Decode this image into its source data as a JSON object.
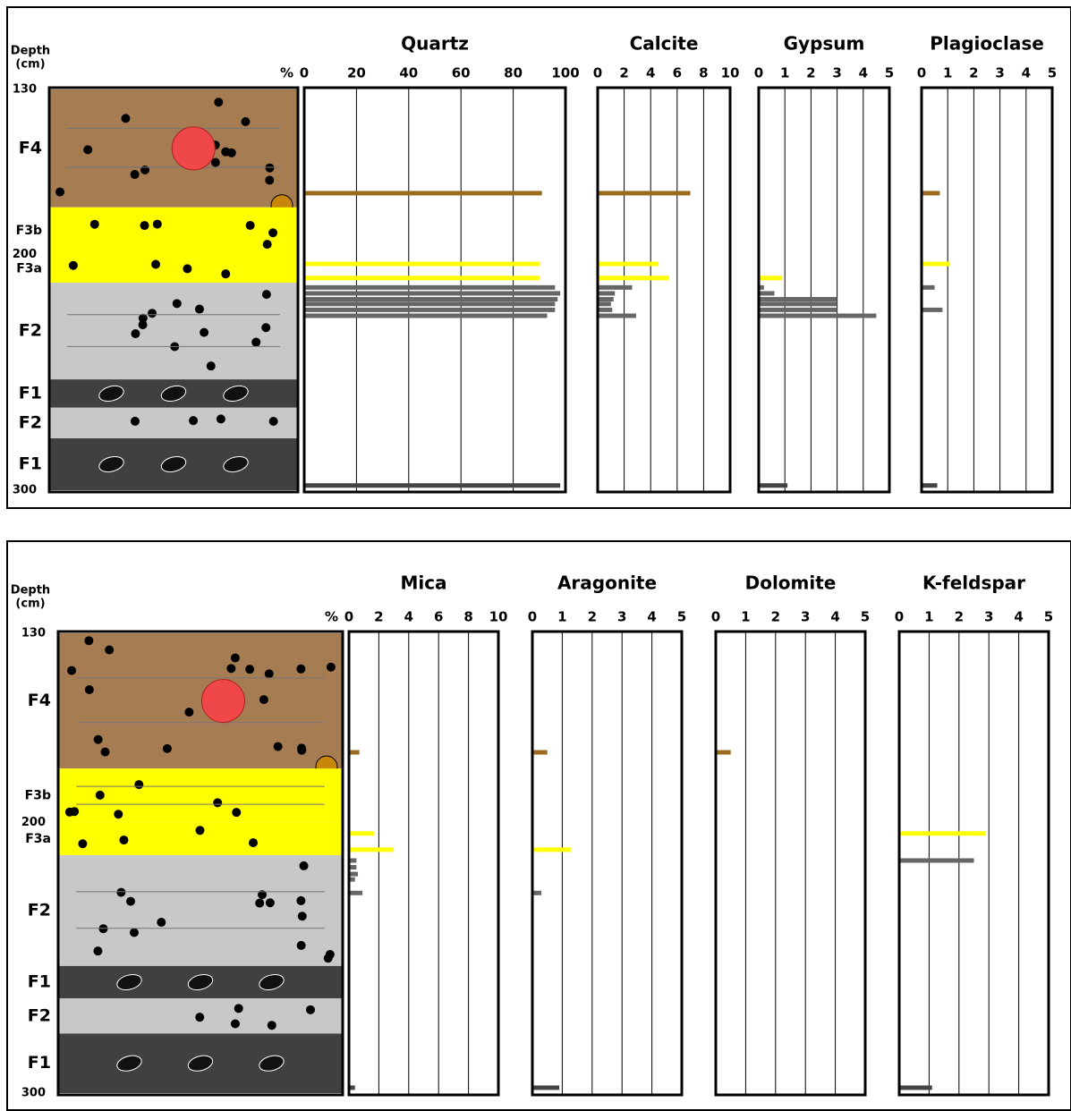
{
  "chart_data": [
    {
      "type": "bar",
      "orientation": "horizontal",
      "y_label": [
        "Depth",
        "(cm)"
      ],
      "x_unit": "%",
      "ylim": [
        130,
        300
      ],
      "yticks": [
        130,
        200,
        300
      ],
      "depths": [
        174,
        204,
        210,
        214,
        216.5,
        219,
        221,
        223.5,
        226,
        298
      ],
      "colors": [
        "#9b6a1f",
        "#ffff00",
        "#ffff00",
        "#666666",
        "#666666",
        "#666666",
        "#666666",
        "#666666",
        "#666666",
        "#444444"
      ],
      "layers": [
        {
          "label": "F4",
          "top": 130,
          "bottom": 180,
          "color": "#a67c52"
        },
        {
          "label": "F3b",
          "top": 180,
          "bottom": 200,
          "color": "#ffff00"
        },
        {
          "label": "F3a",
          "top": 200,
          "bottom": 212,
          "color": "#ffff00"
        },
        {
          "label": "F2",
          "top": 212,
          "bottom": 253,
          "color": "#c8c8c8"
        },
        {
          "label": "F1",
          "top": 253,
          "bottom": 265,
          "color": "#404040"
        },
        {
          "label": "F2",
          "top": 265,
          "bottom": 278,
          "color": "#c8c8c8"
        },
        {
          "label": "F1",
          "top": 278,
          "bottom": 300,
          "color": "#404040"
        }
      ],
      "subplots": [
        {
          "title": "Quartz",
          "xlim": [
            0,
            100
          ],
          "xticks": [
            0,
            20,
            40,
            60,
            80,
            100
          ],
          "values": [
            91,
            90,
            90,
            96,
            98,
            97,
            96,
            96,
            93,
            98
          ]
        },
        {
          "title": "Calcite",
          "xlim": [
            0,
            10
          ],
          "xticks": [
            0,
            2,
            4,
            6,
            8,
            10
          ],
          "values": [
            7.0,
            4.6,
            5.4,
            2.6,
            1.3,
            1.2,
            1.0,
            1.1,
            2.9,
            null
          ]
        },
        {
          "title": "Gypsum",
          "xlim": [
            0,
            5
          ],
          "xticks": [
            0,
            1,
            2,
            3,
            4,
            5
          ],
          "values": [
            null,
            null,
            0.9,
            0.2,
            0.6,
            3.0,
            3.0,
            3.0,
            4.5,
            1.1
          ]
        },
        {
          "title": "Plagioclase",
          "xlim": [
            0,
            5
          ],
          "xticks": [
            0,
            1,
            2,
            3,
            4,
            5
          ],
          "values": [
            0.7,
            1.1,
            null,
            0.5,
            null,
            null,
            null,
            0.8,
            null,
            0.6
          ]
        }
      ]
    },
    {
      "type": "bar",
      "orientation": "horizontal",
      "y_label": [
        "Depth",
        "(cm)"
      ],
      "x_unit": "%",
      "ylim": [
        130,
        300
      ],
      "yticks": [
        130,
        200,
        300
      ],
      "depths": [
        174,
        204,
        210,
        214,
        216.5,
        219,
        221,
        223.5,
        226,
        298
      ],
      "colors": [
        "#9b6a1f",
        "#ffff00",
        "#ffff00",
        "#666666",
        "#666666",
        "#666666",
        "#666666",
        "#666666",
        "#666666",
        "#444444"
      ],
      "layers": [
        {
          "label": "F4",
          "top": 130,
          "bottom": 180,
          "color": "#a67c52"
        },
        {
          "label": "F3b",
          "top": 180,
          "bottom": 200,
          "color": "#ffff00"
        },
        {
          "label": "F3a",
          "top": 200,
          "bottom": 212,
          "color": "#ffff00"
        },
        {
          "label": "F2",
          "top": 212,
          "bottom": 253,
          "color": "#c8c8c8"
        },
        {
          "label": "F1",
          "top": 253,
          "bottom": 265,
          "color": "#404040"
        },
        {
          "label": "F2",
          "top": 265,
          "bottom": 278,
          "color": "#c8c8c8"
        },
        {
          "label": "F1",
          "top": 278,
          "bottom": 300,
          "color": "#404040"
        }
      ],
      "subplots": [
        {
          "title": "Mica",
          "xlim": [
            0,
            10
          ],
          "xticks": [
            0,
            2,
            4,
            6,
            8,
            10
          ],
          "values": [
            0.7,
            1.7,
            3.0,
            0.5,
            0.5,
            0.6,
            0.4,
            null,
            0.9,
            0.4
          ]
        },
        {
          "title": "Aragonite",
          "xlim": [
            0,
            5
          ],
          "xticks": [
            0,
            1,
            2,
            3,
            4,
            5
          ],
          "values": [
            0.5,
            null,
            1.3,
            null,
            null,
            null,
            null,
            null,
            0.3,
            0.9
          ]
        },
        {
          "title": "Dolomite",
          "xlim": [
            0,
            5
          ],
          "xticks": [
            0,
            1,
            2,
            3,
            4,
            5
          ],
          "values": [
            0.5,
            null,
            null,
            null,
            null,
            null,
            null,
            null,
            null,
            null
          ]
        },
        {
          "title": "K-feldspar",
          "xlim": [
            0,
            5
          ],
          "xticks": [
            0,
            1,
            2,
            3,
            4,
            5
          ],
          "values": [
            null,
            2.9,
            null,
            2.5,
            null,
            null,
            null,
            null,
            null,
            1.1
          ]
        }
      ]
    }
  ]
}
